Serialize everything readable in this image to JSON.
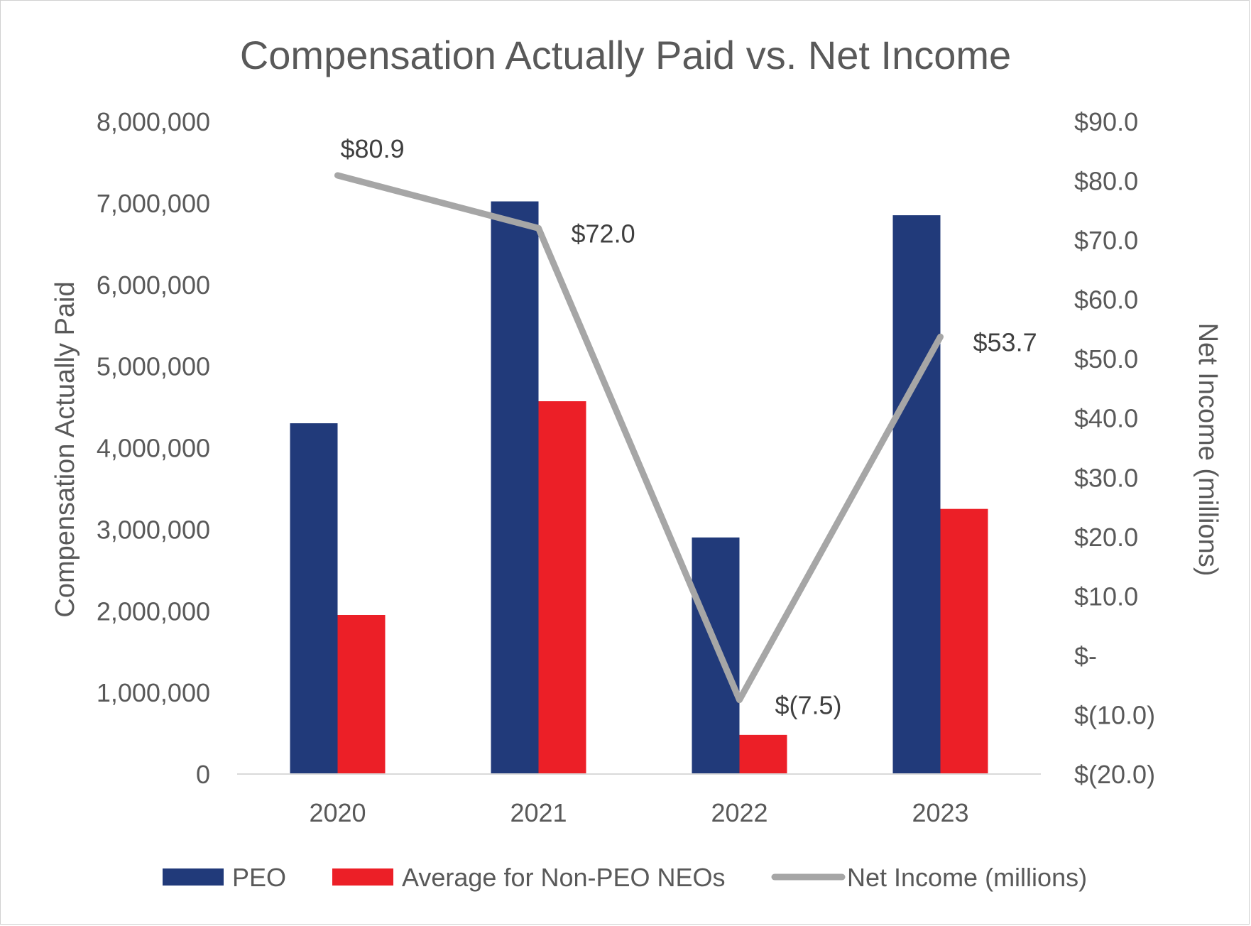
{
  "chart_data": {
    "type": "bar",
    "title": "Compensation Actually Paid vs. Net Income",
    "categories": [
      "2020",
      "2021",
      "2022",
      "2023"
    ],
    "series": [
      {
        "name": "PEO",
        "type": "bar",
        "axis": "left",
        "color": "#213a7a",
        "values": [
          4300000,
          7020000,
          2900000,
          6850000
        ]
      },
      {
        "name": "Average for Non-PEO NEOs",
        "type": "bar",
        "axis": "left",
        "color": "#ec1f27",
        "values": [
          1950000,
          4570000,
          480000,
          3250000
        ]
      },
      {
        "name": "Net Income (millions)",
        "type": "line",
        "axis": "right",
        "color": "#a6a6a6",
        "values": [
          80.9,
          72.0,
          -7.5,
          53.7
        ],
        "data_labels": [
          "$80.9",
          "$72.0",
          "$(7.5)",
          "$53.7"
        ]
      }
    ],
    "left_axis": {
      "label": "Compensation Actually Paid",
      "range": [
        0,
        8000000
      ],
      "ticks": [
        0,
        1000000,
        2000000,
        3000000,
        4000000,
        5000000,
        6000000,
        7000000,
        8000000
      ],
      "tick_labels": [
        "0",
        "1,000,000",
        "2,000,000",
        "3,000,000",
        "4,000,000",
        "5,000,000",
        "6,000,000",
        "7,000,000",
        "8,000,000"
      ]
    },
    "right_axis": {
      "label": "Net Income (millions)",
      "range": [
        -20,
        90
      ],
      "ticks": [
        -20,
        -10,
        0,
        10,
        20,
        30,
        40,
        50,
        60,
        70,
        80,
        90
      ],
      "tick_labels": [
        "$(20.0)",
        "$(10.0)",
        "$-",
        "$10.0",
        "$20.0",
        "$30.0",
        "$40.0",
        "$50.0",
        "$60.0",
        "$70.0",
        "$80.0",
        "$90.0"
      ]
    },
    "legend": {
      "placement": "bottom",
      "entries": [
        "PEO",
        "Average for Non-PEO NEOs",
        "Net Income (millions)"
      ]
    },
    "grid": false
  }
}
